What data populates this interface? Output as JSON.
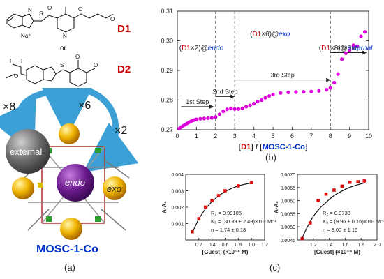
{
  "left_panel": {
    "d1_label": "D1",
    "d2_label": "D2",
    "or_text": "or",
    "sodium_ion": "Na⁺",
    "count_8": "×8",
    "count_6": "×6",
    "count_2": "×2",
    "external_label": "external",
    "endo_label": "endo",
    "exo_label": "exo",
    "framework_name": "MOSC-1-Co",
    "sublabel": "(a)",
    "colors": {
      "drug": "#cc0000",
      "framework": "#0033cc",
      "arrow": "#3aa0d5"
    }
  },
  "right_panel": {
    "sublabel_b": "(b)",
    "sublabel_c": "(c)"
  },
  "chart_data": [
    {
      "type": "scatter",
      "xlabel": {
        "open": "[",
        "d1": "D1",
        "mid": "] / [",
        "framework": "MOSC-1-Co",
        "close": "]"
      },
      "ylabel": "",
      "xlim": [
        0,
        10
      ],
      "ylim": [
        0.27,
        0.31
      ],
      "x_ticks": [
        0,
        1,
        2,
        3,
        4,
        5,
        6,
        7,
        8,
        9,
        10
      ],
      "y_ticks": [
        0.27,
        0.28,
        0.29,
        0.3,
        0.31
      ],
      "y_tick_labels": [
        "0.27",
        "0.28",
        "0.29",
        "0.30",
        "0.31"
      ],
      "marker_color": "#dd00dd",
      "x": [
        0.1,
        0.2,
        0.3,
        0.4,
        0.5,
        0.6,
        0.7,
        0.8,
        0.9,
        1.0,
        1.2,
        1.4,
        1.6,
        1.8,
        2.0,
        2.2,
        2.4,
        2.6,
        2.8,
        3.0,
        3.2,
        3.4,
        3.6,
        3.8,
        4.0,
        4.2,
        4.4,
        4.6,
        4.8,
        5.0,
        5.4,
        5.8,
        6.2,
        6.6,
        7.0,
        7.4,
        7.8,
        8.0,
        8.2,
        8.4,
        8.6,
        8.8,
        9.0,
        9.2,
        9.4,
        9.6,
        9.8
      ],
      "y": [
        0.2704,
        0.2709,
        0.2713,
        0.2717,
        0.2721,
        0.2725,
        0.2728,
        0.2731,
        0.2733,
        0.2735,
        0.2737,
        0.2738,
        0.2739,
        0.274,
        0.2743,
        0.2752,
        0.2762,
        0.2769,
        0.2772,
        0.277,
        0.277,
        0.2772,
        0.2778,
        0.2782,
        0.2788,
        0.2795,
        0.28,
        0.2808,
        0.2814,
        0.2819,
        0.2824,
        0.2826,
        0.2827,
        0.2828,
        0.2829,
        0.2831,
        0.2835,
        0.2841,
        0.2859,
        0.2888,
        0.2938,
        0.2958,
        0.2968,
        0.2985,
        0.2982,
        0.3015,
        0.303
      ],
      "dashed_lines": [
        2,
        3,
        8
      ],
      "steps": [
        {
          "label": "1st Step",
          "from": 0.2,
          "to": 1.9,
          "y": 0.2778
        },
        {
          "label": "2nd Step",
          "from": 2.0,
          "to": 3.0,
          "y": 0.2812
        },
        {
          "label": "3rd Step",
          "from": 3.0,
          "to": 8.0,
          "y": 0.2868
        },
        {
          "label": "4th Step",
          "from": 8.0,
          "to": 9.9,
          "y": 0.296
        }
      ],
      "annotations": [
        {
          "open": "(",
          "drug": "D1",
          "mult": "×2)@",
          "site": "endo",
          "x": 0.1,
          "y": 0.2968
        },
        {
          "open": "(",
          "drug": "D1",
          "mult": "×6)@",
          "site": "exo",
          "x": 3.8,
          "y": 0.3015
        },
        {
          "open": "(",
          "drug": "D1",
          "mult": "×8)@",
          "site": "external",
          "x": 7.4,
          "y": 0.2968
        }
      ]
    },
    {
      "type": "scatter",
      "xlabel": "[Guest] (×10⁻⁶ M)",
      "ylabel": "A-A₀",
      "xlim": [
        0,
        1.2
      ],
      "ylim": [
        0,
        0.004
      ],
      "x_ticks": [
        0.2,
        0.4,
        0.6,
        0.8,
        1.0,
        1.2
      ],
      "x_tick_labels": [
        "0.2",
        "0.4",
        "0.6",
        "0.8",
        "1.0",
        "1.2"
      ],
      "y_ticks": [
        0.001,
        0.002,
        0.003,
        0.004
      ],
      "y_tick_labels": [
        "0.001",
        "0.002",
        "0.003",
        "0.004"
      ],
      "x": [
        0.1,
        0.2,
        0.3,
        0.4,
        0.5,
        0.6,
        0.8,
        1.0
      ],
      "y": [
        0.0005,
        0.0013,
        0.002,
        0.0024,
        0.0027,
        0.003,
        0.0033,
        0.0035
      ],
      "fit_x": [
        0.1,
        0.2,
        0.3,
        0.4,
        0.5,
        0.6,
        0.7,
        0.8,
        0.9,
        1.0
      ],
      "fit_y": [
        0.00045,
        0.0013,
        0.0019,
        0.00235,
        0.0027,
        0.00295,
        0.00315,
        0.0033,
        0.0034,
        0.00348
      ],
      "r2": "R₂ = 0.99105",
      "ka": "Kₐ = (30.39 ± 2.49)×10⁴ M⁻¹",
      "n": "n = 1.74 ± 0.18"
    },
    {
      "type": "scatter",
      "xlabel": "[Guest] (×10⁻⁶ M)",
      "ylabel": "A-A₀",
      "xlim": [
        1.0,
        2.0
      ],
      "ylim": [
        0.0045,
        0.007
      ],
      "x_ticks": [
        1.2,
        1.4,
        1.6,
        1.8,
        2.0
      ],
      "x_tick_labels": [
        "1.2",
        "1.4",
        "1.6",
        "1.8",
        "2.0"
      ],
      "y_ticks": [
        0.0045,
        0.005,
        0.0055,
        0.006,
        0.0065,
        0.007
      ],
      "y_tick_labels": [
        "0.0045",
        "0.0050",
        "0.0055",
        "0.0060",
        "0.0065",
        "0.0070"
      ],
      "x": [
        1.06,
        1.16,
        1.26,
        1.36,
        1.46,
        1.56,
        1.66,
        1.76,
        1.84
      ],
      "y": [
        0.00455,
        0.00515,
        0.006,
        0.00625,
        0.0064,
        0.00655,
        0.0067,
        0.00672,
        0.00675
      ],
      "fit_x": [
        1.05,
        1.1,
        1.15,
        1.2,
        1.25,
        1.3,
        1.35,
        1.4,
        1.45,
        1.5,
        1.55,
        1.6,
        1.65,
        1.7,
        1.75,
        1.8,
        1.85
      ],
      "fit_y": [
        0.0045,
        0.00485,
        0.00515,
        0.0054,
        0.0056,
        0.00577,
        0.0059,
        0.00605,
        0.00617,
        0.00627,
        0.00635,
        0.00643,
        0.0065,
        0.00655,
        0.0066,
        0.00664,
        0.00668
      ],
      "r2": "R₂ = 0.9738",
      "ka": "Kₐ = (9.96 ± 0.16)×10⁴ M⁻¹",
      "n": "n = 8.00 ± 1.16"
    }
  ]
}
